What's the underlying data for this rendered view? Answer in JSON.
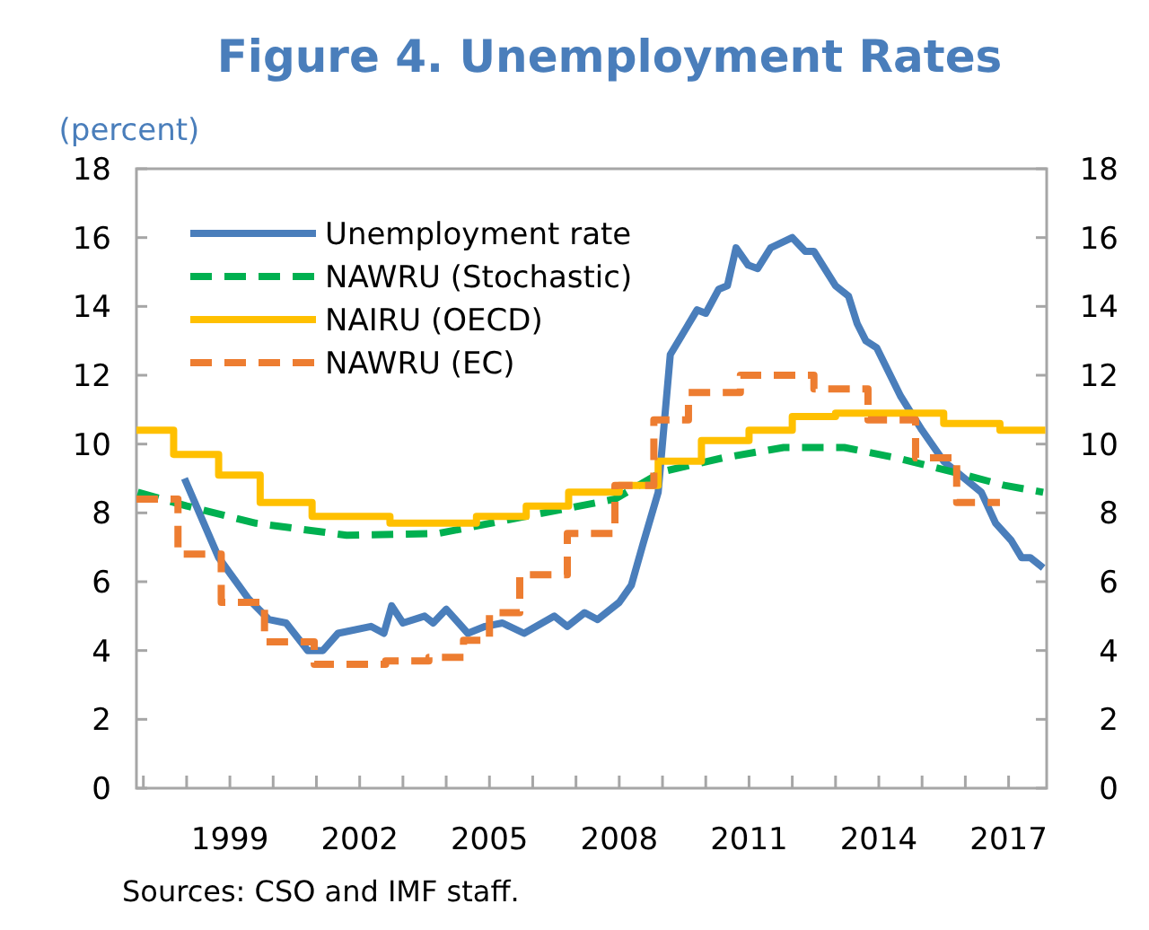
{
  "chart_data": {
    "type": "line",
    "title": "Figure 4. Unemployment Rates",
    "ylabel": "(percent)",
    "xlim": [
      1996.84,
      2017.88
    ],
    "xticks": [
      {
        "value": 1997,
        "label": null
      },
      {
        "value": 1998,
        "label": null
      },
      1999,
      {
        "value": 2000,
        "label": null
      },
      {
        "value": 2001,
        "label": null
      },
      2002,
      {
        "value": 2003,
        "label": null
      },
      {
        "value": 2004,
        "label": null
      },
      2005,
      {
        "value": 2006,
        "label": null
      },
      {
        "value": 2007,
        "label": null
      },
      2008,
      {
        "value": 2009,
        "label": null
      },
      {
        "value": 2010,
        "label": null
      },
      2011,
      {
        "value": 2012,
        "label": null
      },
      {
        "value": 2013,
        "label": null
      },
      2014,
      {
        "value": 2015,
        "label": null
      },
      {
        "value": 2016,
        "label": null
      },
      2017
    ],
    "ylim": [
      0,
      18
    ],
    "yticks": [
      0,
      2,
      4,
      6,
      8,
      10,
      12,
      14,
      16,
      18
    ],
    "y2lim": [
      0,
      18
    ],
    "y2ticks": [
      0,
      2,
      4,
      6,
      8,
      10,
      12,
      14,
      16,
      18
    ],
    "grid": false,
    "legend": "top left",
    "marker": "none",
    "series": [
      {
        "name": "Unemployment rate",
        "color": "#4a7ebb",
        "line_style": "solid",
        "x": [
          1997.95,
          1998.74,
          1999.43,
          1999.9,
          2000.3,
          2000.8,
          2001.15,
          2001.5,
          2002.26,
          2002.56,
          2002.74,
          2003.0,
          2003.5,
          2003.7,
          2004.0,
          2004.5,
          2004.9,
          2005.3,
          2005.8,
          2006.5,
          2006.8,
          2007.2,
          2007.5,
          2008.0,
          2008.28,
          2008.55,
          2008.9,
          2009.18,
          2009.8,
          2010.0,
          2010.3,
          2010.5,
          2010.7,
          2010.98,
          2011.2,
          2011.5,
          2012.0,
          2012.3,
          2012.5,
          2013.0,
          2013.3,
          2013.5,
          2013.7,
          2013.95,
          2014.5,
          2015.0,
          2015.5,
          2016.37,
          2016.7,
          2017.06,
          2017.3,
          2017.5,
          2017.8
        ],
        "values": [
          9.0,
          6.7,
          5.5,
          4.9,
          4.8,
          4.0,
          4.0,
          4.5,
          4.7,
          4.5,
          5.3,
          4.8,
          5.0,
          4.8,
          5.2,
          4.5,
          4.7,
          4.8,
          4.5,
          5.0,
          4.7,
          5.1,
          4.9,
          5.4,
          5.9,
          7.1,
          8.6,
          12.6,
          13.9,
          13.8,
          14.5,
          14.6,
          15.7,
          15.2,
          15.1,
          15.7,
          16.0,
          15.6,
          15.6,
          14.6,
          14.3,
          13.5,
          13.0,
          12.8,
          11.4,
          10.4,
          9.5,
          8.6,
          7.7,
          7.2,
          6.7,
          6.7,
          6.4
        ]
      },
      {
        "name": "NAWRU (Stochastic)",
        "color": "#00b050",
        "line_style": "dashed",
        "x": [
          1996.87,
          1998.0,
          1999.6,
          2001.7,
          2003.8,
          2005.85,
          2007.9,
          2009.0,
          2010.4,
          2011.8,
          2013.2,
          2014.4,
          2016.0,
          2016.9,
          2017.8
        ],
        "values": [
          8.6,
          8.2,
          7.7,
          7.35,
          7.4,
          7.9,
          8.4,
          9.2,
          9.6,
          9.9,
          9.9,
          9.6,
          9.1,
          8.8,
          8.6
        ]
      },
      {
        "name": "NAIRU (OECD)",
        "color": "#ffc000",
        "type": "step",
        "line_style": "solid",
        "x": [
          1996.84,
          1997.7,
          1998.74,
          1999.7,
          2000.9,
          2002.7,
          2004.7,
          2005.85,
          2006.83,
          2008.0,
          2008.9,
          2009.9,
          2011.0,
          2012.0,
          2013.0,
          2015.5,
          2016.8,
          2017.85
        ],
        "values": [
          10.4,
          9.7,
          9.1,
          8.3,
          7.9,
          7.7,
          7.9,
          8.2,
          8.6,
          8.8,
          9.5,
          10.1,
          10.4,
          10.8,
          10.9,
          10.6,
          10.4,
          10.4
        ]
      },
      {
        "name": "NAWRU (EC)",
        "color": "#ed7d31",
        "type": "step",
        "line_style": "dashed",
        "x": [
          1996.84,
          1997.8,
          1998.8,
          1999.8,
          2000.95,
          2002.6,
          2003.6,
          2004.4,
          2005.0,
          2005.7,
          2006.8,
          2007.9,
          2008.8,
          2009.6,
          2010.8,
          2012.5,
          2013.75,
          2014.85,
          2015.8,
          2016.8
        ],
        "values": [
          8.4,
          6.8,
          5.4,
          4.25,
          3.6,
          3.7,
          3.8,
          4.3,
          5.1,
          6.2,
          7.4,
          8.8,
          10.7,
          11.5,
          12.0,
          11.6,
          10.7,
          9.6,
          8.3,
          8.3
        ]
      }
    ],
    "annotations": [
      "Sources: CSO and IMF staff."
    ]
  }
}
